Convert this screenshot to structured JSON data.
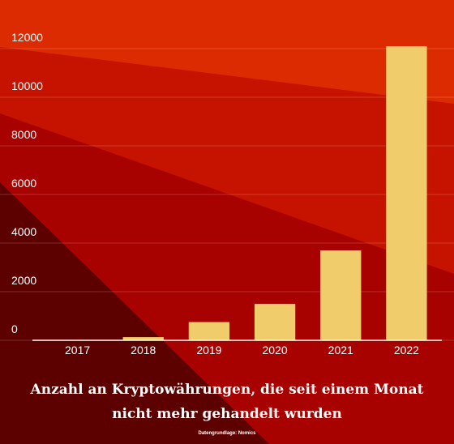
{
  "chart_data": {
    "type": "bar",
    "title": "Anzahl an Kryptowährungen, die seit einem Monat nicht mehr gehandelt wurden",
    "source": "Datengrundlage: Nomics",
    "categories": [
      "2017",
      "2018",
      "2019",
      "2020",
      "2021",
      "2022"
    ],
    "values": [
      10,
      130,
      750,
      1500,
      3700,
      12100
    ],
    "color": "#f0cd6a",
    "ylim": [
      0,
      12000
    ],
    "yticks": [
      0,
      2000,
      4000,
      6000,
      8000,
      10000,
      12000
    ],
    "grid": true
  }
}
